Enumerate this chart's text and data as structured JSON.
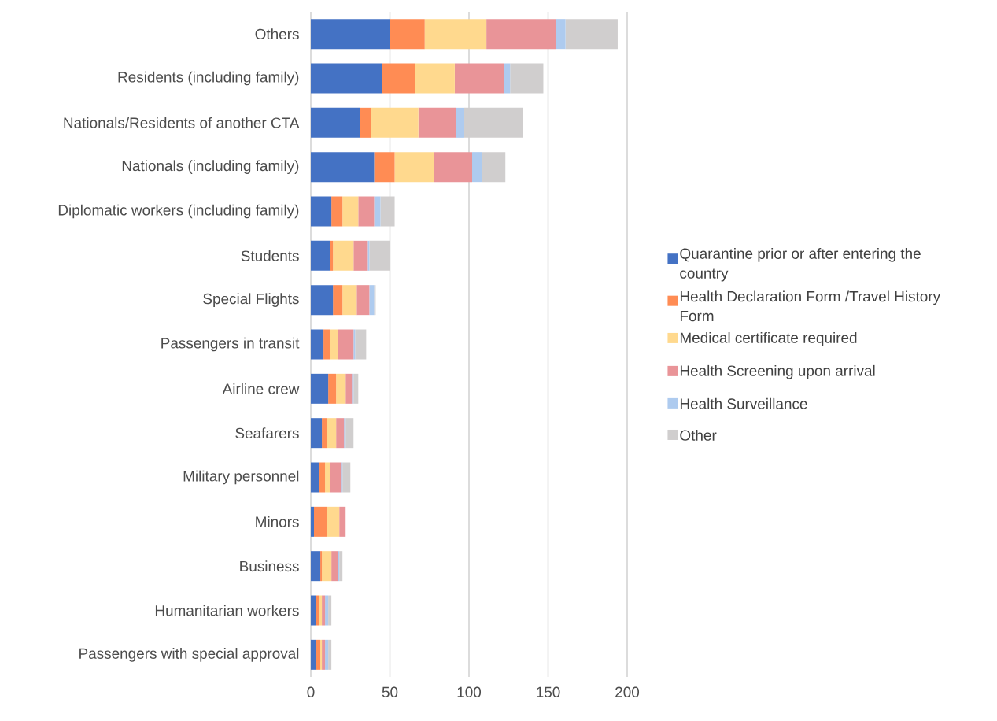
{
  "chart_data": {
    "type": "bar",
    "orientation": "horizontal",
    "stacked": true,
    "grid": "x",
    "legend": "right",
    "xlim": [
      0,
      200
    ],
    "xticks": [
      0,
      50,
      100,
      150,
      200
    ],
    "categories": [
      "Others",
      "Residents (including family)",
      "Nationals/Residents of another CTA",
      "Nationals (including family)",
      "Diplomatic workers (including family)",
      "Students",
      "Special Flights",
      "Passengers in transit",
      "Airline crew",
      "Seafarers",
      "Military personnel",
      "Minors",
      "Business",
      "Humanitarian workers",
      "Passengers with special approval"
    ],
    "series": [
      {
        "name": "Quarantine prior or after entering the country",
        "color": "#4472c4",
        "values": [
          50,
          45,
          31,
          40,
          13,
          12,
          14,
          8,
          11,
          7,
          5,
          2,
          6,
          3,
          3
        ]
      },
      {
        "name": "Health Declaration Form /Travel History Form",
        "color": "#ff8c54",
        "values": [
          22,
          21,
          7,
          13,
          7,
          2,
          6,
          4,
          5,
          3,
          4,
          8,
          1,
          2,
          3
        ]
      },
      {
        "name": "Medical certificate required",
        "color": "#ffd98e",
        "values": [
          39,
          25,
          30,
          25,
          10,
          13,
          9,
          5,
          6,
          6,
          3,
          8,
          6,
          2,
          1
        ]
      },
      {
        "name": "Health Screening upon arrival",
        "color": "#e99498",
        "values": [
          44,
          31,
          24,
          24,
          10,
          9,
          8,
          10,
          4,
          5,
          7,
          4,
          4,
          2,
          2
        ]
      },
      {
        "name": "Health Surveillance",
        "color": "#aecbef",
        "values": [
          6,
          4,
          5,
          6,
          4,
          1,
          3,
          1,
          1,
          1,
          1,
          0,
          1,
          2,
          2
        ]
      },
      {
        "name": "Other",
        "color": "#d0cece",
        "values": [
          33,
          21,
          37,
          15,
          9,
          13,
          1,
          7,
          3,
          5,
          5,
          0,
          2,
          2,
          2
        ]
      }
    ]
  }
}
